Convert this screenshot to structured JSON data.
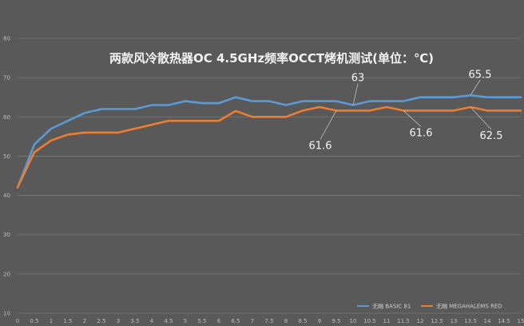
{
  "chart_data": {
    "type": "line",
    "title": "两款风冷散热器OC 4.5GHz频率OCCT烤机测试(单位：℃)",
    "x": [
      0,
      0.5,
      1,
      1.5,
      2,
      2.5,
      3,
      3.5,
      4,
      4.5,
      5,
      5.5,
      6,
      6.5,
      7,
      7.5,
      8,
      8.5,
      9,
      9.5,
      10,
      10.5,
      11,
      11.5,
      12,
      12.5,
      13,
      13.5,
      14,
      14.5,
      15
    ],
    "x_tick_labels": [
      "0",
      "0.5",
      "1",
      "1.5",
      "2",
      "2.5",
      "3",
      "3.5",
      "4",
      "4.5",
      "5",
      "5.5",
      "6",
      "6.5",
      "7",
      "7.5",
      "8",
      "8.5",
      "9",
      "9.5",
      "10",
      "10.5",
      "11",
      "11.5",
      "12",
      "12.5",
      "13",
      "13.5",
      "14",
      "14.5",
      "15"
    ],
    "y_tick_labels": [
      "10",
      "20",
      "30",
      "40",
      "50",
      "60",
      "70",
      "80"
    ],
    "ylim": [
      10,
      80
    ],
    "grid": true,
    "legend_position": "bottom-right",
    "series": [
      {
        "name": "无融 BASIC 81",
        "color": "#5b9bd5",
        "values": [
          42,
          53,
          57,
          59,
          61,
          62,
          62,
          62,
          63,
          63,
          64,
          63.5,
          63.5,
          65,
          64,
          64,
          63,
          64,
          64,
          64,
          63,
          64,
          64,
          64,
          65,
          65,
          65,
          65.5,
          65,
          65,
          65
        ]
      },
      {
        "name": "无融 MEGAHALEMS RED",
        "color": "#ed7d31",
        "values": [
          42,
          51,
          54,
          55.5,
          56,
          56,
          56,
          57,
          58,
          59,
          59,
          59,
          59,
          61.5,
          60,
          60,
          60,
          61.6,
          62.5,
          61.6,
          61.6,
          61.6,
          62.5,
          61.6,
          61.6,
          61.6,
          61.6,
          62.5,
          61.6,
          61.6,
          61.6
        ]
      }
    ],
    "annotations": [
      {
        "text": "63",
        "series": 0,
        "x": 10
      },
      {
        "text": "65.5",
        "series": 0,
        "x": 13.5
      },
      {
        "text": "61.6",
        "series": 1,
        "x": 9.5
      },
      {
        "text": "61.6",
        "series": 1,
        "x": 11.5
      },
      {
        "text": "62.5",
        "series": 1,
        "x": 13.5
      }
    ]
  }
}
